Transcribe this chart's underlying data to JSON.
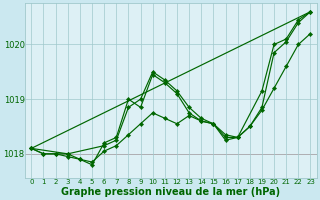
{
  "background_color": "#cbe8f0",
  "plot_bg_color": "#ddf0f5",
  "grid_color": "#a0c8cc",
  "line_color": "#006600",
  "red_line_color": "#cc0000",
  "xlabel": "Graphe pression niveau de la mer (hPa)",
  "xlabel_fontsize": 7.0,
  "ylabel_ticks": [
    1018,
    1019,
    1020
  ],
  "xlim": [
    -0.5,
    23.5
  ],
  "ylim": [
    1017.55,
    1020.75
  ],
  "xticks": [
    0,
    1,
    2,
    3,
    4,
    5,
    6,
    7,
    8,
    9,
    10,
    11,
    12,
    13,
    14,
    15,
    16,
    17,
    18,
    19,
    20,
    21,
    22,
    23
  ],
  "red_line_y": 1018.0,
  "series": [
    {
      "x": [
        0,
        1,
        2,
        3,
        4,
        5,
        6,
        7,
        8,
        9,
        10,
        11,
        12,
        13,
        14,
        15,
        16,
        17,
        18,
        19,
        20,
        21,
        22,
        23
      ],
      "y": [
        1018.1,
        1018.0,
        1018.0,
        1018.0,
        1017.9,
        1017.85,
        1018.05,
        1018.15,
        1018.35,
        1018.55,
        1018.75,
        1018.65,
        1018.55,
        1018.7,
        1018.6,
        1018.55,
        1018.3,
        1018.3,
        1018.5,
        1018.8,
        1019.2,
        1019.6,
        1020.0,
        1020.2
      ],
      "marker": true
    },
    {
      "x": [
        0,
        1,
        2,
        3,
        4,
        5,
        6,
        7,
        8,
        9,
        10,
        11,
        12,
        13,
        14,
        15,
        16,
        17,
        18,
        19,
        20,
        21,
        22,
        23
      ],
      "y": [
        1018.1,
        1018.0,
        1018.0,
        1017.95,
        1017.9,
        1017.8,
        1018.2,
        1018.3,
        1019.0,
        1018.85,
        1019.45,
        1019.3,
        1019.1,
        1018.75,
        1018.6,
        1018.55,
        1018.25,
        1018.3,
        1018.5,
        1018.85,
        1019.85,
        1020.05,
        1020.4,
        1020.6
      ],
      "marker": true
    },
    {
      "x": [
        0,
        3,
        6,
        7,
        8,
        9,
        10,
        11,
        12,
        13,
        14,
        15,
        16,
        17,
        19,
        20,
        21,
        22,
        23
      ],
      "y": [
        1018.1,
        1018.0,
        1018.15,
        1018.25,
        1018.85,
        1019.0,
        1019.5,
        1019.35,
        1019.15,
        1018.85,
        1018.65,
        1018.55,
        1018.35,
        1018.3,
        1019.15,
        1020.0,
        1020.1,
        1020.45,
        1020.6
      ],
      "marker": true
    },
    {
      "x": [
        0,
        23
      ],
      "y": [
        1018.1,
        1020.6
      ],
      "marker": false
    }
  ],
  "marker_style": "D",
  "marker_size": 2.2,
  "linewidth": 0.85
}
